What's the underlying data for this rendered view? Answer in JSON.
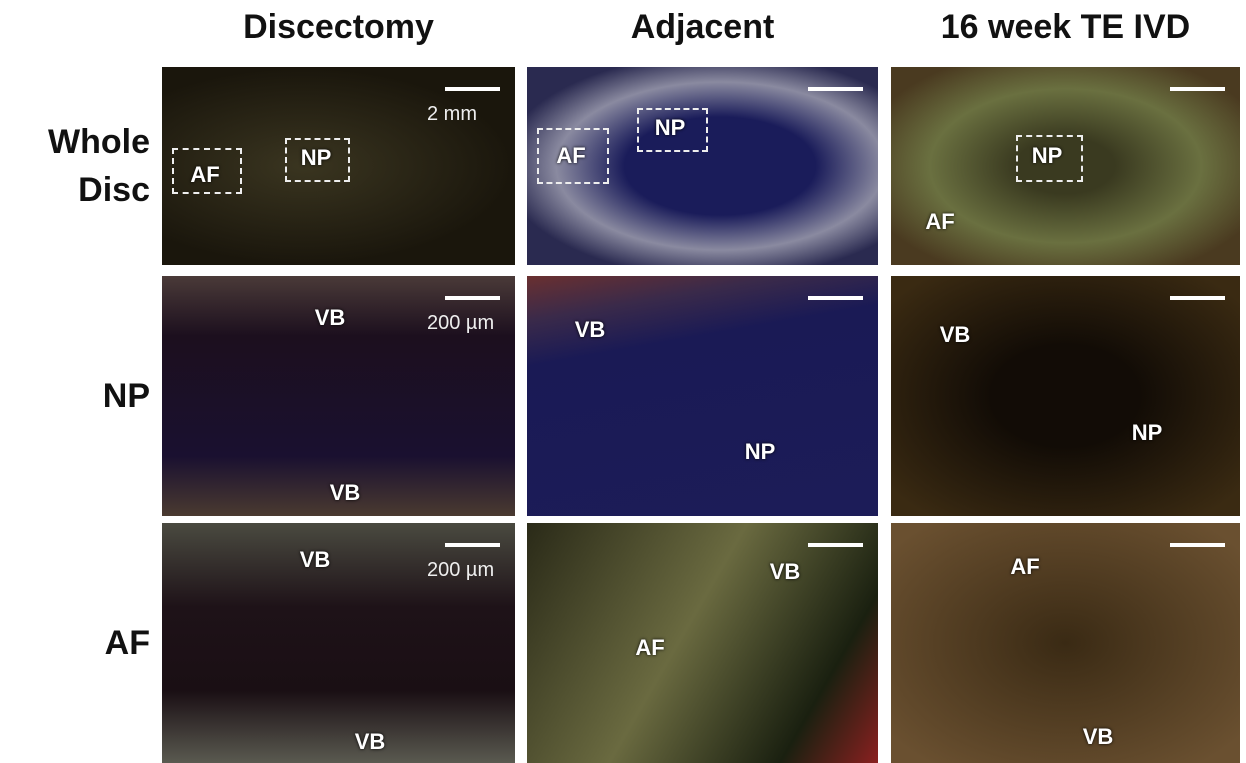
{
  "columns": [
    "Discectomy",
    "Adjacent",
    "16 week TE IVD"
  ],
  "rows": [
    "Whole Disc",
    "NP",
    "AF"
  ],
  "panels": [
    [
      {
        "labels": [
          "AF",
          "NP"
        ],
        "scale": "2 mm"
      },
      {
        "labels": [
          "AF",
          "NP"
        ]
      },
      {
        "labels": [
          "NP",
          "AF"
        ]
      }
    ],
    [
      {
        "labels": [
          "VB",
          "VB"
        ],
        "scale": "200 µm"
      },
      {
        "labels": [
          "VB",
          "NP"
        ]
      },
      {
        "labels": [
          "VB",
          "NP"
        ]
      }
    ],
    [
      {
        "labels": [
          "VB",
          "VB"
        ],
        "scale": "200 µm"
      },
      {
        "labels": [
          "VB",
          "AF"
        ]
      },
      {
        "labels": [
          "AF",
          "VB"
        ]
      }
    ]
  ]
}
